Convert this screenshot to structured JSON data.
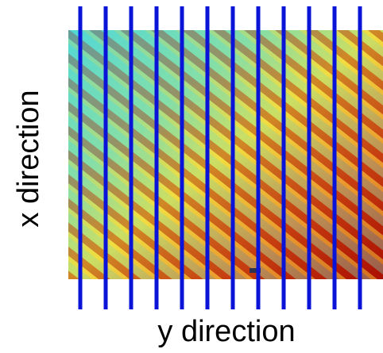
{
  "labels": {
    "left": "x direction",
    "bottom": "y direction"
  }
}
